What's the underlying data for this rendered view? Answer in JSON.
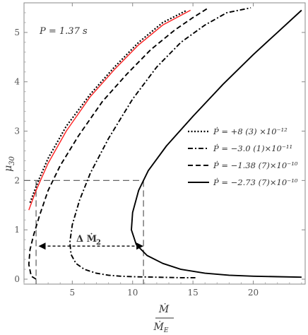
{
  "chart_data": {
    "type": "line",
    "xlabel": {
      "numerator": "Ṁ",
      "denominator": "Ṁ",
      "denominator_sub": "E"
    },
    "ylabel": {
      "main": "μ",
      "sub": "30"
    },
    "xlim": [
      1,
      24.3
    ],
    "ylim": [
      -0.1,
      5.6
    ],
    "xticks": [
      5,
      10,
      15,
      20
    ],
    "yticks": [
      0,
      1,
      2,
      3,
      4,
      5
    ],
    "period_annotation": "P = 1.37 s",
    "delta_annotation": "Δ Ṁ",
    "delta_sub": "2",
    "legend_position": "right",
    "grid": false,
    "guide_line": {
      "y": 2.0,
      "x_left": 2.0,
      "x_right": 10.9
    },
    "delta_arrow": {
      "y": 0.67,
      "x_from": 2.2,
      "x_to": 10.9
    },
    "series": [
      {
        "name": "Ṗ = +8 (3)  ×10⁻¹²",
        "style": "dotted",
        "color": "#000000",
        "points": [
          [
            1.5,
            1.55
          ],
          [
            2.2,
            2.0
          ],
          [
            3.0,
            2.45
          ],
          [
            4.5,
            3.1
          ],
          [
            6.5,
            3.75
          ],
          [
            8.5,
            4.3
          ],
          [
            10.5,
            4.8
          ],
          [
            12.5,
            5.2
          ],
          [
            14.5,
            5.45
          ]
        ]
      },
      {
        "name": "",
        "style": "solid",
        "color": "#ff2020",
        "points": [
          [
            1.4,
            1.4
          ],
          [
            2.0,
            1.8
          ],
          [
            3.0,
            2.35
          ],
          [
            4.5,
            3.0
          ],
          [
            6.5,
            3.7
          ],
          [
            8.5,
            4.25
          ],
          [
            10.5,
            4.75
          ],
          [
            12.5,
            5.15
          ],
          [
            14.8,
            5.45
          ]
        ]
      },
      {
        "name": "Ṗ = −3.0 (1)×10⁻¹¹",
        "style": "dashdot",
        "color": "#000000",
        "points": [
          [
            15.2,
            0.03
          ],
          [
            14,
            0.03
          ],
          [
            12,
            0.04
          ],
          [
            10,
            0.05
          ],
          [
            9,
            0.06
          ],
          [
            8,
            0.08
          ],
          [
            7,
            0.12
          ],
          [
            6,
            0.2
          ],
          [
            5.3,
            0.32
          ],
          [
            4.9,
            0.5
          ],
          [
            4.8,
            0.75
          ],
          [
            5.0,
            1.1
          ],
          [
            5.6,
            1.6
          ],
          [
            6.5,
            2.15
          ],
          [
            8,
            2.85
          ],
          [
            10,
            3.65
          ],
          [
            12,
            4.3
          ],
          [
            14,
            4.8
          ],
          [
            16,
            5.15
          ],
          [
            17.8,
            5.4
          ],
          [
            19.8,
            5.5
          ]
        ]
      },
      {
        "name": "Ṗ = −1.38 (7)×10⁻¹⁰",
        "style": "dashed",
        "color": "#000000",
        "points": [
          [
            2.0,
            0.0
          ],
          [
            1.6,
            0.06
          ],
          [
            1.4,
            0.3
          ],
          [
            1.5,
            0.6
          ],
          [
            1.8,
            0.9
          ],
          [
            2.3,
            1.3
          ],
          [
            3.0,
            1.8
          ],
          [
            4.0,
            2.3
          ],
          [
            5.5,
            2.9
          ],
          [
            7.5,
            3.6
          ],
          [
            9.5,
            4.15
          ],
          [
            11.5,
            4.65
          ],
          [
            13.5,
            5.05
          ],
          [
            15.0,
            5.3
          ],
          [
            16.3,
            5.5
          ]
        ]
      },
      {
        "name": "Ṗ = −2.73 (7)×10⁻¹⁰",
        "style": "solid",
        "color": "#000000",
        "points": [
          [
            24.0,
            0.04
          ],
          [
            22,
            0.05
          ],
          [
            20,
            0.06
          ],
          [
            18,
            0.08
          ],
          [
            16,
            0.12
          ],
          [
            14,
            0.2
          ],
          [
            12.5,
            0.32
          ],
          [
            11.2,
            0.48
          ],
          [
            10.3,
            0.7
          ],
          [
            9.9,
            1.0
          ],
          [
            10.0,
            1.35
          ],
          [
            10.5,
            1.8
          ],
          [
            11.3,
            2.2
          ],
          [
            12.8,
            2.7
          ],
          [
            15,
            3.3
          ],
          [
            17.5,
            3.95
          ],
          [
            20,
            4.55
          ],
          [
            22,
            5.0
          ],
          [
            24.0,
            5.45
          ]
        ]
      }
    ]
  }
}
